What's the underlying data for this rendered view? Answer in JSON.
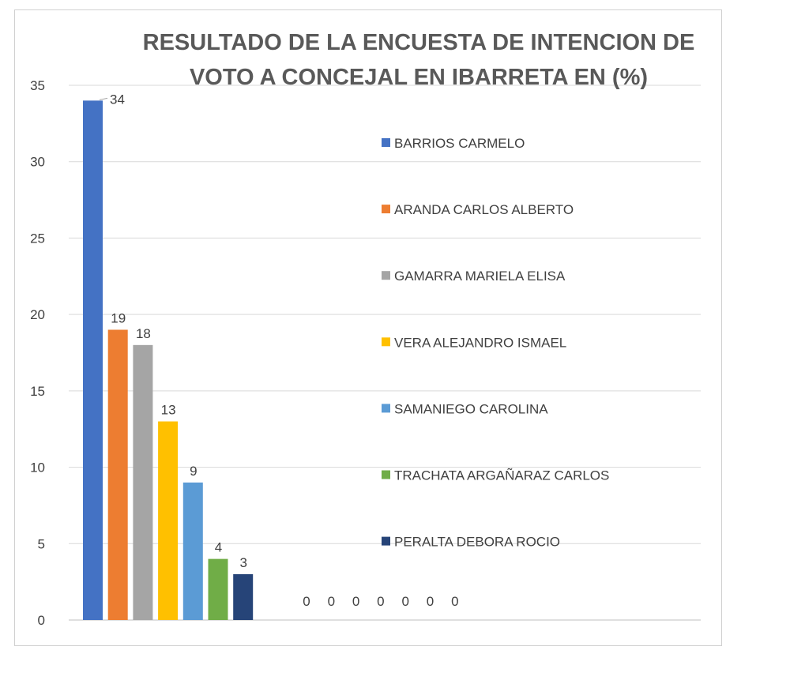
{
  "chart_data": {
    "type": "bar",
    "title": "RESULTADO DE LA ENCUESTA DE INTENCION DE VOTO A CONCEJAL EN IBARRETA EN (%)",
    "title_lines": [
      "RESULTADO DE LA ENCUESTA DE INTENCION DE",
      "VOTO A CONCEJAL EN IBARRETA EN (%)"
    ],
    "xlabel": "",
    "ylabel": "",
    "ylim": [
      0,
      35
    ],
    "yticks": [
      0,
      5,
      10,
      15,
      20,
      25,
      30,
      35
    ],
    "grid": true,
    "legend_position": "right",
    "series": [
      {
        "name": "BARRIOS CARMELO",
        "value": 34,
        "color": "#4472C4"
      },
      {
        "name": "ARANDA CARLOS ALBERTO",
        "value": 19,
        "color": "#ED7D31"
      },
      {
        "name": "GAMARRA MARIELA ELISA",
        "value": 18,
        "color": "#A5A5A5"
      },
      {
        "name": "VERA ALEJANDRO ISMAEL",
        "value": 13,
        "color": "#FFC000"
      },
      {
        "name": "SAMANIEGO CAROLINA",
        "value": 9,
        "color": "#5B9BD5"
      },
      {
        "name": "TRACHATA ARGAÑARAZ CARLOS",
        "value": 4,
        "color": "#70AD47"
      },
      {
        "name": "PERALTA DEBORA ROCIO",
        "value": 3,
        "color": "#264478"
      }
    ],
    "zero_labels": [
      "0",
      "0",
      "0",
      "0",
      "0",
      "0",
      "0"
    ]
  }
}
